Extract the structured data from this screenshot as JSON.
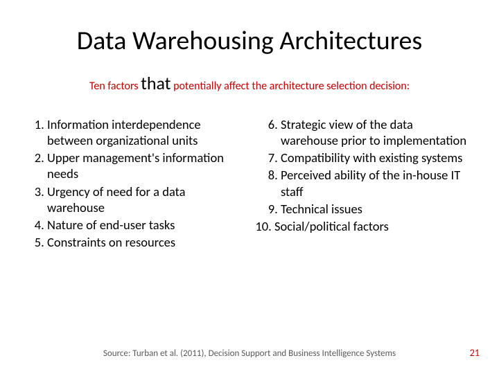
{
  "title": "Data Warehousing Architectures",
  "subtitle_prefix": "Ten factors ",
  "subtitle_that": "that",
  "subtitle_suffix": " potentially affect the architecture selection decision:",
  "left_items": [
    "Information interdependence between organizational units",
    "Upper management's information needs",
    "Urgency of need for a data warehouse",
    "Nature of end-user tasks",
    "Constraints on resources"
  ],
  "right_items": [
    "Strategic view of the data warehouse prior to implementation",
    "Compatibility with existing systems",
    "Perceived ability of the in-house IT staff",
    "Technical issues",
    "Social/political factors"
  ],
  "source": "Source: Turban et al. (2011), Decision Support and Business Intelligence Systems",
  "page_number": "21",
  "colors": {
    "accent": "#c00000",
    "text": "#000000",
    "source_text": "#595959",
    "background": "#ffffff"
  },
  "fonts": {
    "title_size_pt": 38,
    "subtitle_size_pt": 16,
    "that_size_pt": 26,
    "body_size_pt": 18.5,
    "source_size_pt": 13,
    "pagenum_size_pt": 14
  }
}
